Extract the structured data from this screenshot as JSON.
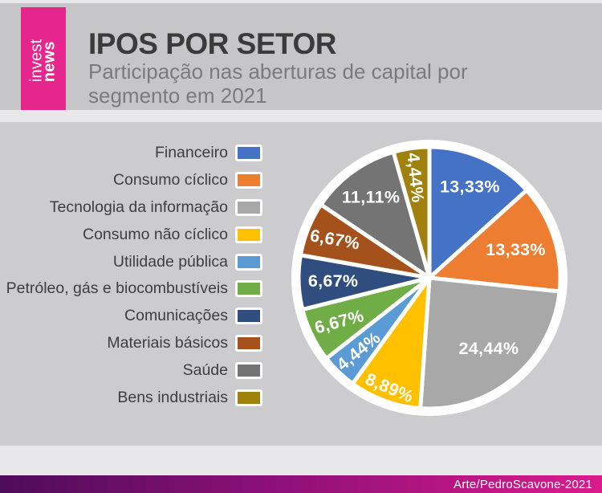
{
  "page": {
    "body_background": "#CCCBCE",
    "header_background": "#C6C5C7",
    "band_color": "#E8E7EA"
  },
  "header": {
    "logo": {
      "line1": "invest",
      "line2": "news",
      "background": "#E6268D",
      "text_color": "#FFFFFF"
    },
    "title": "IPOS POR SETOR",
    "subtitle_lines": [
      "Participação nas aberturas de capital por",
      "segmento em 2021"
    ]
  },
  "chart_data": {
    "type": "pie",
    "title": "IPOS POR SETOR",
    "subtitle": "Participação nas aberturas de capital por segmento em 2021",
    "unit": "%",
    "start_angle_deg": 0,
    "direction": "clockwise",
    "legend_position": "left",
    "value_format": "percent_comma_decimal",
    "slices": [
      {
        "category": "Financeiro",
        "value": 13.33,
        "label": "13,33%",
        "color": "#4472C4"
      },
      {
        "category": "Consumo cíclico",
        "value": 13.33,
        "label": "13,33%",
        "color": "#ED7D31"
      },
      {
        "category": "Tecnologia da informação",
        "value": 24.44,
        "label": "24,44%",
        "color": "#A9A8A8"
      },
      {
        "category": "Consumo não cíclico",
        "value": 8.89,
        "label": "8,89%",
        "color": "#FFC000"
      },
      {
        "category": "Utilidade pública",
        "value": 4.44,
        "label": "4,44%",
        "color": "#5B9BD5"
      },
      {
        "category": "Petróleo, gás e biocombustíveis",
        "value": 6.67,
        "label": "6,67%",
        "color": "#70AD47"
      },
      {
        "category": "Comunicações",
        "value": 6.67,
        "label": "6,67%",
        "color": "#2F4D7E"
      },
      {
        "category": "Materiais básicos",
        "value": 6.67,
        "label": "6,67%",
        "color": "#A4511C"
      },
      {
        "category": "Saúde",
        "value": 11.11,
        "label": "11,11%",
        "color": "#747474"
      },
      {
        "category": "Bens industriais",
        "value": 4.44,
        "label": "4,44%",
        "color": "#A0810D"
      }
    ]
  },
  "footer": {
    "credit": "Arte/PedroScavone-2021",
    "gradient_left": "#4E0C59",
    "gradient_mid": "#8C1078",
    "gradient_right": "#DA1B8C"
  }
}
